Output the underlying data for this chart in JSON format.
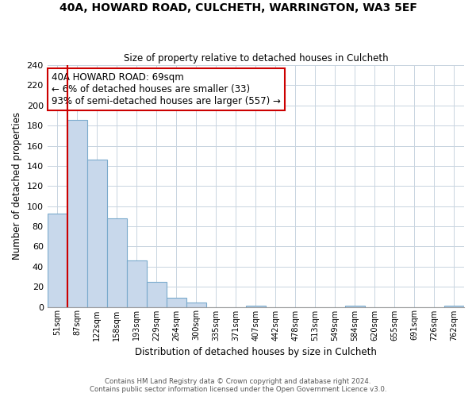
{
  "title": "40A, HOWARD ROAD, CULCHETH, WARRINGTON, WA3 5EF",
  "subtitle": "Size of property relative to detached houses in Culcheth",
  "xlabel": "Distribution of detached houses by size in Culcheth",
  "ylabel": "Number of detached properties",
  "bin_labels": [
    "51sqm",
    "87sqm",
    "122sqm",
    "158sqm",
    "193sqm",
    "229sqm",
    "264sqm",
    "300sqm",
    "335sqm",
    "371sqm",
    "407sqm",
    "442sqm",
    "478sqm",
    "513sqm",
    "549sqm",
    "584sqm",
    "620sqm",
    "655sqm",
    "691sqm",
    "726sqm",
    "762sqm"
  ],
  "bar_heights": [
    93,
    186,
    146,
    88,
    46,
    25,
    9,
    4,
    0,
    0,
    1,
    0,
    0,
    0,
    0,
    1,
    0,
    0,
    0,
    0,
    1
  ],
  "bar_color": "#c8d8eb",
  "bar_edge_color": "#7aaacc",
  "ylim": [
    0,
    240
  ],
  "yticks": [
    0,
    20,
    40,
    60,
    80,
    100,
    120,
    140,
    160,
    180,
    200,
    220,
    240
  ],
  "red_line_x": 0.5,
  "annotation_title": "40A HOWARD ROAD: 69sqm",
  "annotation_line1": "← 6% of detached houses are smaller (33)",
  "annotation_line2": "93% of semi-detached houses are larger (557) →",
  "annotation_box_color": "#ffffff",
  "annotation_box_edge_color": "#cc0000",
  "footer_line1": "Contains HM Land Registry data © Crown copyright and database right 2024.",
  "footer_line2": "Contains public sector information licensed under the Open Government Licence v3.0.",
  "background_color": "#ffffff",
  "grid_color": "#c8d4e0"
}
